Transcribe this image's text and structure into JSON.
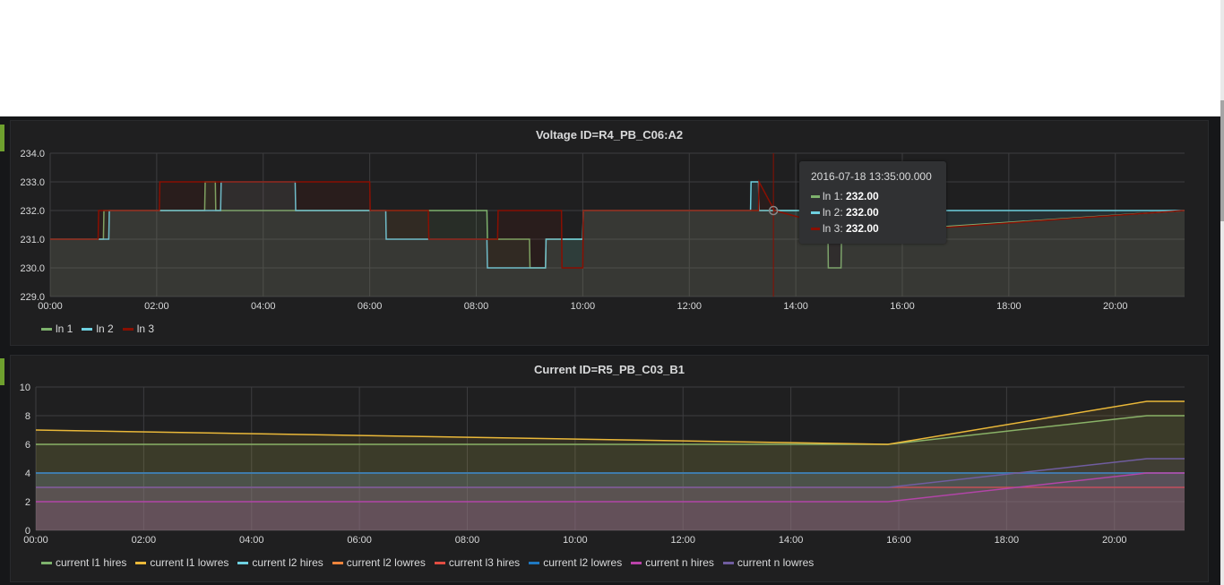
{
  "colors": {
    "background": "#161719",
    "panel": "#1f1f20",
    "grid": "#404040",
    "accent": "#6ea02e"
  },
  "chart_data": [
    {
      "type": "line",
      "title": "Voltage ID=R4_PB_C06:A2",
      "xlabel": "",
      "ylabel": "",
      "x_ticks": [
        "00:00",
        "02:00",
        "04:00",
        "06:00",
        "08:00",
        "10:00",
        "12:00",
        "14:00",
        "16:00",
        "18:00",
        "20:00"
      ],
      "y_ticks": [
        "229.0",
        "230.0",
        "231.0",
        "232.0",
        "233.0",
        "234.0"
      ],
      "xlim": [
        0,
        21.3
      ],
      "ylim": [
        229,
        234
      ],
      "grid": true,
      "legend_position": "bottom-left",
      "series": [
        {
          "name": "ln 1",
          "color": "#7eb26d",
          "x": [
            0,
            1,
            1.01,
            2.1,
            2.9,
            2.91,
            3.1,
            3.11,
            5.9,
            5.91,
            6.1,
            6.11,
            8.2,
            8.21,
            9.0,
            9.01,
            9.3,
            9.31,
            10.0,
            10.01,
            11.9,
            11.91,
            14.6,
            14.61,
            14.85,
            14.86,
            21.3
          ],
          "y": [
            231,
            231,
            232,
            232,
            232,
            233,
            233,
            232,
            232,
            232,
            232,
            232,
            232,
            231,
            231,
            230,
            230,
            231,
            231,
            232,
            232,
            232,
            232,
            230,
            230,
            231.2,
            232
          ]
        },
        {
          "name": "ln 2",
          "color": "#6ed0e0",
          "x": [
            0,
            1.1,
            1.11,
            3.2,
            3.21,
            4.6,
            4.61,
            6.3,
            6.31,
            8.2,
            8.21,
            9.0,
            9.01,
            9.3,
            9.31,
            10.0,
            10.01,
            13.15,
            13.16,
            13.3,
            13.31,
            21.3
          ],
          "y": [
            231,
            231,
            232,
            232,
            233,
            233,
            232,
            232,
            231,
            231,
            230,
            230,
            230,
            230,
            231,
            231,
            232,
            232,
            233,
            233,
            232,
            232
          ]
        },
        {
          "name": "ln 3",
          "color": "#890f02",
          "x": [
            0,
            0.9,
            0.91,
            2.05,
            2.06,
            6.0,
            6.01,
            7.1,
            7.11,
            8.4,
            8.41,
            9.6,
            9.61,
            10.0,
            10.01,
            13.3,
            13.31,
            13.6,
            15.2,
            21.3
          ],
          "y": [
            231,
            231,
            232,
            232,
            233,
            233,
            232,
            232,
            231,
            231,
            232,
            232,
            230,
            230,
            232,
            232,
            233,
            232,
            231.2,
            232
          ]
        }
      ],
      "tooltip": {
        "time": "2016-07-18 13:35:00.000",
        "rows": [
          {
            "label": "ln 1:",
            "value": "232.00",
            "color": "#7eb26d"
          },
          {
            "label": "ln 2:",
            "value": "232.00",
            "color": "#6ed0e0"
          },
          {
            "label": "ln 3:",
            "value": "232.00",
            "color": "#890f02"
          }
        ]
      }
    },
    {
      "type": "line",
      "title": "Current ID=R5_PB_C03_B1",
      "xlabel": "",
      "ylabel": "",
      "x_ticks": [
        "00:00",
        "02:00",
        "04:00",
        "06:00",
        "08:00",
        "10:00",
        "12:00",
        "14:00",
        "16:00",
        "18:00",
        "20:00"
      ],
      "y_ticks": [
        "0",
        "2",
        "4",
        "6",
        "8",
        "10"
      ],
      "xlim": [
        0,
        21.3
      ],
      "ylim": [
        0,
        10
      ],
      "grid": true,
      "legend_position": "bottom-left",
      "series": [
        {
          "name": "current l1 hires",
          "color": "#7eb26d",
          "x": [
            0,
            15.8,
            20.6,
            21.3
          ],
          "y": [
            6,
            6,
            8,
            8
          ]
        },
        {
          "name": "current l1 lowres",
          "color": "#eab839",
          "x": [
            0,
            15.8,
            20.6,
            21.3
          ],
          "y": [
            7,
            6,
            9,
            9
          ]
        },
        {
          "name": "current l2 hires",
          "color": "#6ed0e0",
          "x": [
            0,
            21.3
          ],
          "y": [
            4,
            4
          ]
        },
        {
          "name": "current l2 lowres",
          "color": "#ef843c",
          "x": [
            0,
            21.3
          ],
          "y": [
            4,
            4
          ]
        },
        {
          "name": "current l3 hires",
          "color": "#e24d42",
          "x": [
            0,
            15.8,
            17.5,
            21.3
          ],
          "y": [
            3,
            3,
            3,
            3
          ]
        },
        {
          "name": "current l2 lowres",
          "color": "#1f78c1",
          "x": [
            0,
            21.3
          ],
          "y": [
            4,
            4
          ]
        },
        {
          "name": "current n hires",
          "color": "#ba43a9",
          "x": [
            0,
            15.8,
            20.6,
            21.3
          ],
          "y": [
            2,
            2,
            4,
            4
          ]
        },
        {
          "name": "current n lowres",
          "color": "#705da0",
          "x": [
            0,
            15.8,
            20.6,
            21.3
          ],
          "y": [
            3,
            3,
            5,
            5
          ]
        }
      ]
    }
  ]
}
